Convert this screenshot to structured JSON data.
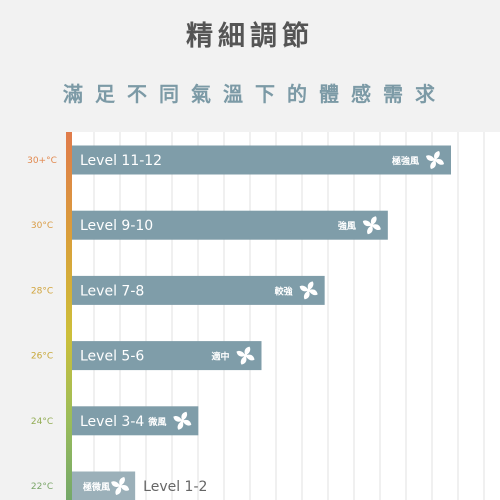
{
  "header": {
    "title": "精細調節",
    "subtitle": "滿足不同氣溫下的體感需求"
  },
  "colors": {
    "bar": "#7f9da9",
    "bar_light": "#9bb0b9",
    "grid": "#e0e0e0",
    "plot_bg": "#ffffff",
    "gradient": [
      "#e07b4b",
      "#d9a13a",
      "#cdbf3a",
      "#9bbd5a",
      "#74a86a"
    ]
  },
  "chart_data": {
    "type": "bar",
    "orientation": "horizontal",
    "title": "精細調節",
    "subtitle": "滿足不同氣溫下的體感需求",
    "grid": true,
    "xlim": [
      0,
      13
    ],
    "categories": [
      "30+°C",
      "30°C",
      "28°C",
      "26°C",
      "24°C",
      "22°C"
    ],
    "level_labels": [
      "Level 11-12",
      "Level 9-10",
      "Level 7-8",
      "Level 5-6",
      "Level 3-4",
      "Level 1-2"
    ],
    "wind_labels": [
      "極強風",
      "強風",
      "較強",
      "適中",
      "微風",
      "極微風"
    ],
    "values": [
      12,
      10,
      8,
      6,
      4,
      2
    ],
    "temp_colors": [
      "#e2894f",
      "#d99c45",
      "#d1a43c",
      "#c7a83a",
      "#93ad55",
      "#7ba66a"
    ],
    "icon": "fan-icon"
  }
}
